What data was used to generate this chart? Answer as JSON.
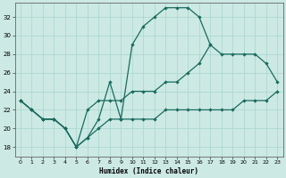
{
  "xlabel": "Humidex (Indice chaleur)",
  "xlim": [
    -0.5,
    23.5
  ],
  "ylim": [
    17,
    33.5
  ],
  "yticks": [
    18,
    20,
    22,
    24,
    26,
    28,
    30,
    32
  ],
  "xticks": [
    0,
    1,
    2,
    3,
    4,
    5,
    6,
    7,
    8,
    9,
    10,
    11,
    12,
    13,
    14,
    15,
    16,
    17,
    18,
    19,
    20,
    21,
    22,
    23
  ],
  "bg_color": "#cce9e4",
  "line_color": "#1a6b5e",
  "grid_color": "#a8d5ce",
  "curve1": {
    "x": [
      0,
      1,
      2,
      3,
      4,
      5,
      6,
      7,
      8,
      9,
      10,
      11,
      12,
      13,
      14,
      15,
      16,
      17
    ],
    "y": [
      23,
      22,
      21,
      21,
      20,
      18,
      19,
      21,
      25,
      21,
      29,
      31,
      32,
      33,
      33,
      33,
      32,
      29
    ]
  },
  "curve2": {
    "x": [
      0,
      1,
      2,
      3,
      4,
      5,
      6,
      7,
      8,
      9,
      10,
      11,
      12,
      13,
      14,
      15,
      16,
      17,
      18,
      19,
      20,
      21,
      22,
      23
    ],
    "y": [
      23,
      22,
      21,
      21,
      20,
      18,
      22,
      23,
      23,
      23,
      24,
      24,
      24,
      25,
      25,
      26,
      27,
      29,
      28,
      28,
      28,
      28,
      27,
      25
    ]
  },
  "curve3": {
    "x": [
      0,
      1,
      2,
      3,
      4,
      5,
      6,
      7,
      8,
      9,
      10,
      11,
      12,
      13,
      14,
      15,
      16,
      17,
      18,
      19,
      20,
      21,
      22,
      23
    ],
    "y": [
      23,
      22,
      21,
      21,
      20,
      18,
      19,
      20,
      21,
      21,
      21,
      21,
      21,
      22,
      22,
      22,
      22,
      22,
      22,
      22,
      23,
      23,
      23,
      24
    ]
  }
}
